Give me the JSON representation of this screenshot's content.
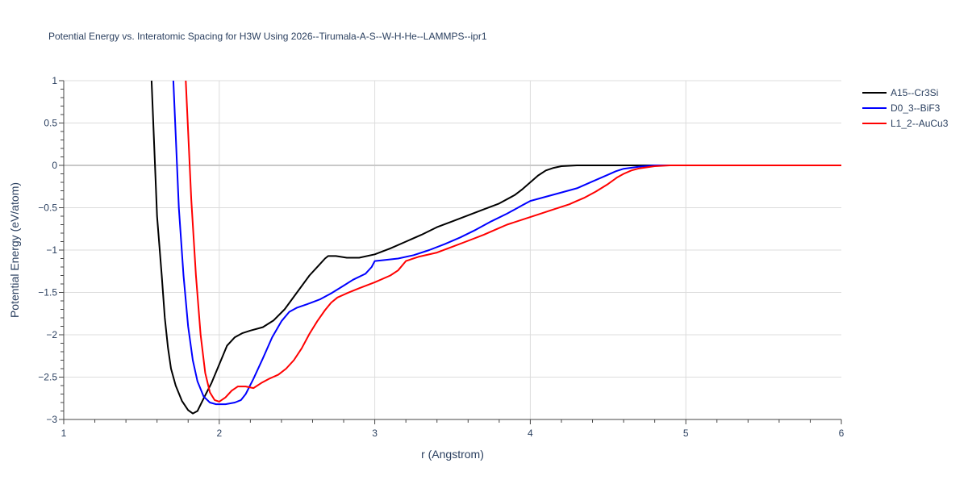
{
  "chart_data": {
    "type": "line",
    "title": "Potential Energy vs. Interatomic Spacing for H3W Using 2026--Tirumala-A-S--W-H-He--LAMMPS--ipr1",
    "xlabel": "r (Angstrom)",
    "ylabel": "Potential Energy (eV/atom)",
    "xlim": [
      1,
      6
    ],
    "ylim": [
      -3,
      1
    ],
    "xticks": [
      "1",
      "2",
      "3",
      "4",
      "5",
      "6"
    ],
    "yticks": [
      "1",
      "0.5",
      "0",
      "−0.5",
      "−1",
      "−1.5",
      "−2",
      "−2.5",
      "−3"
    ],
    "ytick_values": [
      1,
      0.5,
      0,
      -0.5,
      -1,
      -1.5,
      -2,
      -2.5,
      -3
    ],
    "grid": true,
    "legend_position": "top-right",
    "series": [
      {
        "name": "A15--Cr3Si",
        "color": "#000000",
        "points": [
          [
            1.565,
            1.0
          ],
          [
            1.6,
            -0.6
          ],
          [
            1.63,
            -1.3
          ],
          [
            1.65,
            -1.8
          ],
          [
            1.67,
            -2.15
          ],
          [
            1.69,
            -2.4
          ],
          [
            1.72,
            -2.6
          ],
          [
            1.76,
            -2.78
          ],
          [
            1.8,
            -2.89
          ],
          [
            1.83,
            -2.93
          ],
          [
            1.86,
            -2.9
          ],
          [
            1.9,
            -2.75
          ],
          [
            1.95,
            -2.57
          ],
          [
            2.0,
            -2.35
          ],
          [
            2.05,
            -2.13
          ],
          [
            2.1,
            -2.03
          ],
          [
            2.15,
            -1.98
          ],
          [
            2.2,
            -1.95
          ],
          [
            2.28,
            -1.91
          ],
          [
            2.35,
            -1.83
          ],
          [
            2.42,
            -1.7
          ],
          [
            2.5,
            -1.5
          ],
          [
            2.58,
            -1.3
          ],
          [
            2.64,
            -1.18
          ],
          [
            2.68,
            -1.1
          ],
          [
            2.7,
            -1.07
          ],
          [
            2.75,
            -1.07
          ],
          [
            2.82,
            -1.09
          ],
          [
            2.9,
            -1.09
          ],
          [
            3.0,
            -1.05
          ],
          [
            3.1,
            -0.98
          ],
          [
            3.2,
            -0.9
          ],
          [
            3.3,
            -0.82
          ],
          [
            3.4,
            -0.73
          ],
          [
            3.5,
            -0.66
          ],
          [
            3.6,
            -0.59
          ],
          [
            3.7,
            -0.52
          ],
          [
            3.8,
            -0.45
          ],
          [
            3.9,
            -0.35
          ],
          [
            3.95,
            -0.28
          ],
          [
            4.0,
            -0.2
          ],
          [
            4.05,
            -0.12
          ],
          [
            4.1,
            -0.06
          ],
          [
            4.15,
            -0.03
          ],
          [
            4.2,
            -0.01
          ],
          [
            4.3,
            0.0
          ],
          [
            6.0,
            0.0
          ]
        ]
      },
      {
        "name": "D0_3--BiF3",
        "color": "#0000ff",
        "points": [
          [
            1.705,
            1.0
          ],
          [
            1.74,
            -0.5
          ],
          [
            1.77,
            -1.3
          ],
          [
            1.8,
            -1.9
          ],
          [
            1.83,
            -2.3
          ],
          [
            1.86,
            -2.55
          ],
          [
            1.9,
            -2.73
          ],
          [
            1.94,
            -2.8
          ],
          [
            1.98,
            -2.82
          ],
          [
            2.04,
            -2.82
          ],
          [
            2.1,
            -2.8
          ],
          [
            2.14,
            -2.77
          ],
          [
            2.17,
            -2.7
          ],
          [
            2.22,
            -2.52
          ],
          [
            2.28,
            -2.28
          ],
          [
            2.34,
            -2.03
          ],
          [
            2.4,
            -1.84
          ],
          [
            2.45,
            -1.73
          ],
          [
            2.5,
            -1.68
          ],
          [
            2.58,
            -1.63
          ],
          [
            2.65,
            -1.58
          ],
          [
            2.72,
            -1.51
          ],
          [
            2.8,
            -1.42
          ],
          [
            2.86,
            -1.35
          ],
          [
            2.94,
            -1.28
          ],
          [
            2.98,
            -1.2
          ],
          [
            3.0,
            -1.13
          ],
          [
            3.05,
            -1.12
          ],
          [
            3.15,
            -1.1
          ],
          [
            3.25,
            -1.06
          ],
          [
            3.35,
            -1.0
          ],
          [
            3.45,
            -0.93
          ],
          [
            3.55,
            -0.85
          ],
          [
            3.65,
            -0.76
          ],
          [
            3.75,
            -0.66
          ],
          [
            3.85,
            -0.57
          ],
          [
            3.95,
            -0.47
          ],
          [
            4.0,
            -0.42
          ],
          [
            4.1,
            -0.37
          ],
          [
            4.2,
            -0.32
          ],
          [
            4.3,
            -0.27
          ],
          [
            4.4,
            -0.19
          ],
          [
            4.5,
            -0.11
          ],
          [
            4.55,
            -0.07
          ],
          [
            4.6,
            -0.04
          ],
          [
            4.7,
            -0.015
          ],
          [
            4.8,
            0.0
          ],
          [
            6.0,
            0.0
          ]
        ]
      },
      {
        "name": "L1_2--AuCu3",
        "color": "#ff0000",
        "points": [
          [
            1.785,
            1.0
          ],
          [
            1.82,
            -0.4
          ],
          [
            1.85,
            -1.3
          ],
          [
            1.88,
            -2.0
          ],
          [
            1.91,
            -2.45
          ],
          [
            1.94,
            -2.68
          ],
          [
            1.97,
            -2.77
          ],
          [
            2.0,
            -2.79
          ],
          [
            2.04,
            -2.74
          ],
          [
            2.08,
            -2.66
          ],
          [
            2.12,
            -2.61
          ],
          [
            2.17,
            -2.61
          ],
          [
            2.22,
            -2.63
          ],
          [
            2.27,
            -2.57
          ],
          [
            2.32,
            -2.52
          ],
          [
            2.38,
            -2.47
          ],
          [
            2.43,
            -2.4
          ],
          [
            2.48,
            -2.3
          ],
          [
            2.53,
            -2.16
          ],
          [
            2.58,
            -1.99
          ],
          [
            2.63,
            -1.84
          ],
          [
            2.68,
            -1.71
          ],
          [
            2.72,
            -1.62
          ],
          [
            2.76,
            -1.56
          ],
          [
            2.82,
            -1.51
          ],
          [
            2.9,
            -1.45
          ],
          [
            3.0,
            -1.38
          ],
          [
            3.1,
            -1.3
          ],
          [
            3.15,
            -1.24
          ],
          [
            3.2,
            -1.13
          ],
          [
            3.28,
            -1.08
          ],
          [
            3.4,
            -1.03
          ],
          [
            3.5,
            -0.96
          ],
          [
            3.6,
            -0.89
          ],
          [
            3.7,
            -0.82
          ],
          [
            3.8,
            -0.74
          ],
          [
            3.85,
            -0.7
          ],
          [
            3.95,
            -0.64
          ],
          [
            4.05,
            -0.58
          ],
          [
            4.15,
            -0.52
          ],
          [
            4.25,
            -0.46
          ],
          [
            4.3,
            -0.42
          ],
          [
            4.35,
            -0.38
          ],
          [
            4.42,
            -0.31
          ],
          [
            4.5,
            -0.22
          ],
          [
            4.56,
            -0.14
          ],
          [
            4.6,
            -0.1
          ],
          [
            4.65,
            -0.06
          ],
          [
            4.7,
            -0.035
          ],
          [
            4.8,
            -0.01
          ],
          [
            4.9,
            0.0
          ],
          [
            6.0,
            0.0
          ]
        ]
      }
    ]
  }
}
